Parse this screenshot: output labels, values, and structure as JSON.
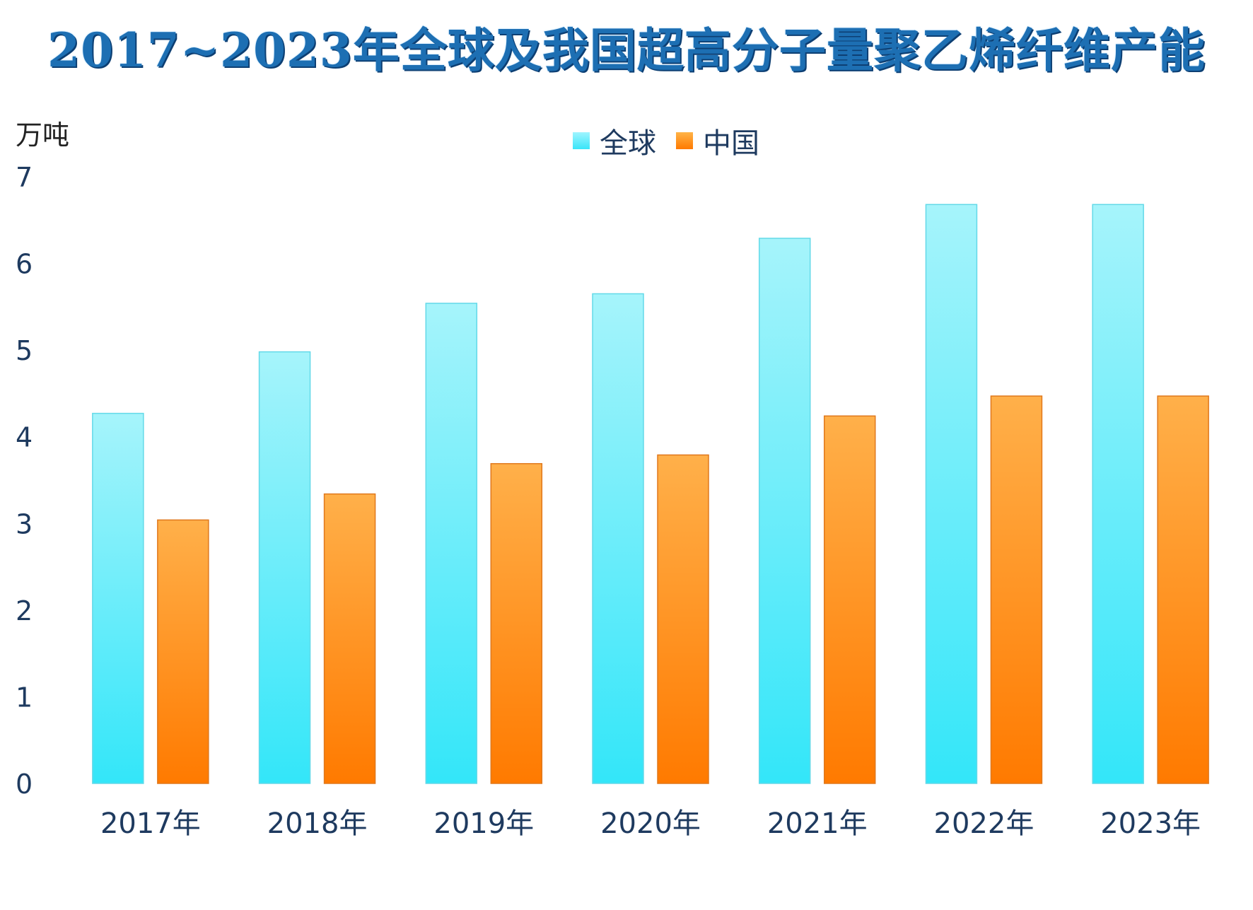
{
  "title": "2017~2023年全球及我国超高分子量聚乙烯纤维产能",
  "unit": "万吨",
  "legend": [
    {
      "name": "全球",
      "color": "#4ee8f8"
    },
    {
      "name": "中国",
      "color": "#ff8a1a"
    }
  ],
  "chart_data": {
    "type": "bar",
    "title": "2017~2023年全球及我国超高分子量聚乙烯纤维产能",
    "ylabel": "万吨",
    "xlabel": "",
    "ylim": [
      0,
      7
    ],
    "yticks": [
      0,
      1,
      2,
      3,
      4,
      5,
      6,
      7
    ],
    "categories": [
      "2017年",
      "2018年",
      "2019年",
      "2020年",
      "2021年",
      "2022年",
      "2023年"
    ],
    "series": [
      {
        "name": "全球",
        "values": [
          4.27,
          4.98,
          5.54,
          5.65,
          6.29,
          6.68,
          6.68
        ],
        "color": "#4ee8f8"
      },
      {
        "name": "中国",
        "values": [
          3.04,
          3.34,
          3.69,
          3.79,
          4.24,
          4.47,
          4.47
        ],
        "color": "#ff8a1a"
      }
    ],
    "legend_position": "top-center",
    "grid": false
  }
}
